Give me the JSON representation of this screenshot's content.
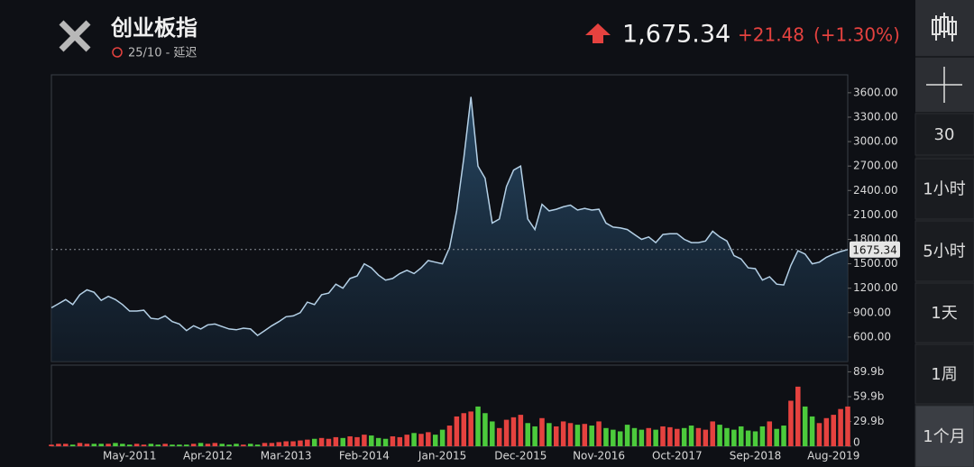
{
  "header": {
    "title": "创业板指",
    "subtitle": "25/10 - 延迟",
    "price": "1,675.34",
    "change": "+21.48",
    "change_pct": "(+1.30%)"
  },
  "sidebar": {
    "items": [
      "30",
      "1小时",
      "5小时",
      "1天",
      "1周",
      "1个月"
    ]
  },
  "chart_data": {
    "type": "line",
    "categories": [
      null,
      null,
      null,
      null,
      null,
      null,
      null,
      null,
      null,
      null,
      null,
      "May-2011",
      null,
      null,
      null,
      null,
      null,
      null,
      null,
      null,
      null,
      null,
      "Apr-2012",
      null,
      null,
      null,
      null,
      null,
      null,
      null,
      null,
      null,
      null,
      "Mar-2013",
      null,
      null,
      null,
      null,
      null,
      null,
      null,
      null,
      null,
      null,
      "Feb-2014",
      null,
      null,
      null,
      null,
      null,
      null,
      null,
      null,
      null,
      null,
      "Jan-2015",
      null,
      null,
      null,
      null,
      null,
      null,
      null,
      null,
      null,
      null,
      "Dec-2015",
      null,
      null,
      null,
      null,
      null,
      null,
      null,
      null,
      null,
      null,
      "Nov-2016",
      null,
      null,
      null,
      null,
      null,
      null,
      null,
      null,
      null,
      null,
      "Oct-2017",
      null,
      null,
      null,
      null,
      null,
      null,
      null,
      null,
      null,
      null,
      "Sep-2018",
      null,
      null,
      null,
      null,
      null,
      null,
      null,
      null,
      null,
      null,
      "Aug-2019",
      null,
      null
    ],
    "series": [
      {
        "color": "#b4d0e6",
        "values": [
          960,
          1010,
          1060,
          1000,
          1120,
          1180,
          1150,
          1050,
          1100,
          1060,
          1000,
          920,
          920,
          930,
          830,
          820,
          860,
          790,
          760,
          680,
          740,
          700,
          750,
          760,
          730,
          700,
          690,
          710,
          700,
          620,
          680,
          740,
          790,
          850,
          860,
          900,
          1030,
          1000,
          1120,
          1140,
          1250,
          1200,
          1320,
          1350,
          1500,
          1450,
          1360,
          1300,
          1320,
          1380,
          1420,
          1380,
          1450,
          1540,
          1520,
          1500,
          1700,
          2150,
          2800,
          3550,
          2700,
          2550,
          2000,
          2050,
          2450,
          2650,
          2700,
          2050,
          1920,
          2230,
          2150,
          2170,
          2200,
          2220,
          2160,
          2180,
          2160,
          2170,
          2000,
          1950,
          1940,
          1920,
          1860,
          1800,
          1830,
          1760,
          1860,
          1870,
          1870,
          1800,
          1760,
          1760,
          1780,
          1900,
          1830,
          1780,
          1600,
          1560,
          1450,
          1440,
          1300,
          1340,
          1250,
          1240,
          1480,
          1660,
          1620,
          1500,
          1520,
          1580,
          1620,
          1650,
          1675.34
        ]
      },
      {
        "type": "bar",
        "axis": "y2",
        "up_color": "#e5423f",
        "down_color": "#4ccb3c",
        "values": [
          2,
          3,
          3,
          2,
          4,
          3,
          3,
          3,
          3,
          4,
          3,
          2,
          3,
          2,
          3,
          2,
          3,
          2,
          2,
          2,
          3,
          4,
          3,
          4,
          3,
          2,
          3,
          2,
          3,
          2,
          4,
          4,
          5,
          6,
          6,
          7,
          8,
          9,
          10,
          9,
          11,
          10,
          12,
          11,
          14,
          13,
          10,
          9,
          12,
          11,
          14,
          16,
          15,
          17,
          14,
          20,
          25,
          36,
          40,
          42,
          48,
          40,
          30,
          22,
          32,
          35,
          38,
          28,
          24,
          34,
          28,
          24,
          30,
          28,
          26,
          27,
          25,
          30,
          22,
          20,
          18,
          26,
          22,
          20,
          22,
          20,
          24,
          23,
          21,
          22,
          25,
          22,
          20,
          30,
          26,
          22,
          20,
          24,
          19,
          18,
          24,
          30,
          21,
          25,
          55,
          72,
          48,
          36,
          28,
          34,
          38,
          45,
          48
        ]
      }
    ],
    "ylim": [
      300,
      3820
    ],
    "yticks": [
      {
        "value": 600,
        "label": "600.00"
      },
      {
        "value": 900,
        "label": "900.00"
      },
      {
        "value": 1200,
        "label": "1200.00"
      },
      {
        "value": 1500,
        "label": "1500.00"
      },
      {
        "value": 1800,
        "label": "1800.00"
      },
      {
        "value": 2100,
        "label": "2100.00"
      },
      {
        "value": 2400,
        "label": "2400.00"
      },
      {
        "value": 2700,
        "label": "2700.00"
      },
      {
        "value": 3000,
        "label": "3000.00"
      },
      {
        "value": 3300,
        "label": "3300.00"
      },
      {
        "value": 3600,
        "label": "3600.00"
      }
    ],
    "y2lim": [
      0,
      98
    ],
    "y2ticks": [
      0,
      {
        "value": 29.9,
        "label": "29.9b"
      },
      {
        "value": 59.9,
        "label": "59.9b"
      },
      {
        "value": 89.9,
        "label": "89.9b"
      }
    ]
  }
}
